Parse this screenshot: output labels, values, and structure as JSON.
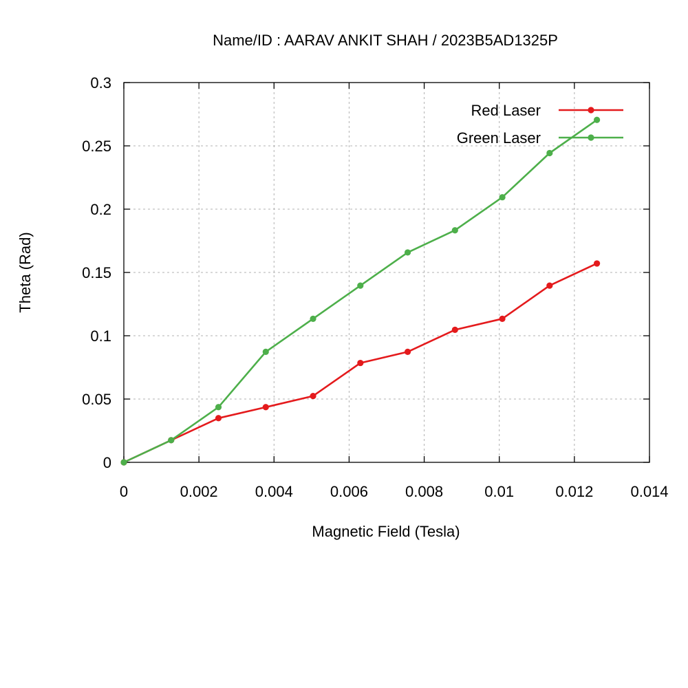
{
  "chart_data": {
    "type": "line",
    "title": "Name/ID : AARAV ANKIT SHAH / 2023B5AD1325P",
    "xlabel": "Magnetic Field (Tesla)",
    "ylabel": "Theta (Rad)",
    "xlim": [
      0,
      0.014
    ],
    "ylim": [
      0,
      0.3
    ],
    "xticks": [
      0,
      0.002,
      0.004,
      0.006,
      0.008,
      0.01,
      0.012,
      0.014
    ],
    "xtick_labels": [
      "0",
      "0.002",
      "0.004",
      "0.006",
      "0.008",
      "0.01",
      "0.012",
      "0.014"
    ],
    "yticks": [
      0,
      0.05,
      0.1,
      0.15,
      0.2,
      0.25,
      0.3
    ],
    "ytick_labels": [
      "0",
      "0.05",
      "0.1",
      "0.15",
      "0.2",
      "0.25",
      "0.3"
    ],
    "grid": true,
    "legend_position": "top-right",
    "x": [
      0,
      0.00126,
      0.00252,
      0.00378,
      0.00504,
      0.0063,
      0.00756,
      0.00882,
      0.01008,
      0.01134,
      0.0126
    ],
    "series": [
      {
        "name": "Red Laser",
        "color": "#e41a1c",
        "values": [
          0,
          0.0175,
          0.0349,
          0.0436,
          0.0524,
          0.0785,
          0.0873,
          0.1047,
          0.1134,
          0.1396,
          0.1571
        ]
      },
      {
        "name": "Green Laser",
        "color": "#4daf4a",
        "values": [
          0,
          0.0175,
          0.0436,
          0.0873,
          0.1134,
          0.1396,
          0.1658,
          0.1833,
          0.2094,
          0.2443,
          0.2705
        ]
      }
    ]
  }
}
